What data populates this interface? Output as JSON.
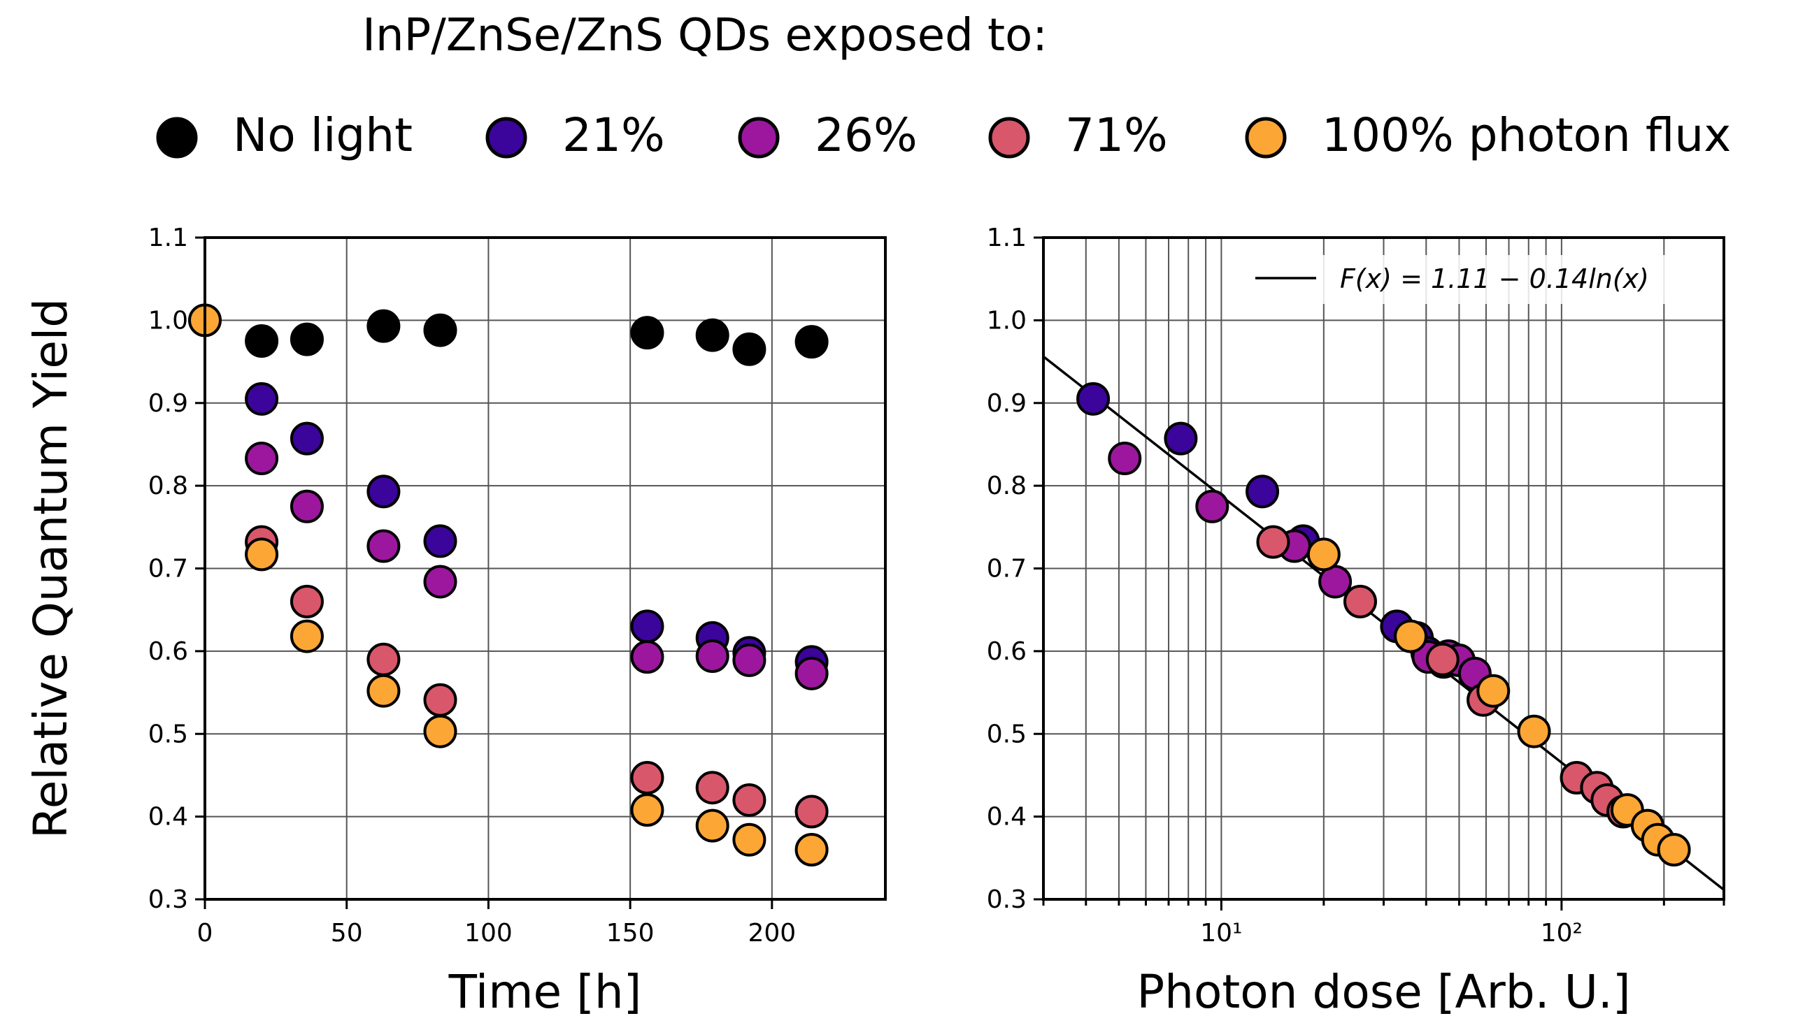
{
  "figure_title": "InP/ZnSe/ZnS QDs exposed to:",
  "legend": [
    {
      "label": "No light",
      "color": "#000000"
    },
    {
      "label": "21%",
      "color": "#3b049a"
    },
    {
      "label": "26%",
      "color": "#9c179e"
    },
    {
      "label": "71%",
      "color": "#d8576b"
    },
    {
      "label": "100% photon flux",
      "color": "#fca636"
    }
  ],
  "chart_data": [
    {
      "type": "scatter",
      "title": "",
      "xlabel": "Time [h]",
      "ylabel": "Relative Quantum Yield",
      "xlim": [
        0,
        240
      ],
      "ylim": [
        0.3,
        1.1
      ],
      "xticks": [
        0,
        50,
        100,
        150,
        200
      ],
      "xtick_labels": [
        "0",
        "50",
        "100",
        "150",
        "200"
      ],
      "yticks": [
        0.3,
        0.4,
        0.5,
        0.6,
        0.7,
        0.8,
        0.9,
        1.0,
        1.1
      ],
      "ytick_labels": [
        "0.3",
        "0.4",
        "0.5",
        "0.6",
        "0.7",
        "0.8",
        "0.9",
        "1.0",
        "1.1"
      ],
      "grid": true,
      "series": [
        {
          "name": "No light",
          "color": "#000000",
          "x": [
            20,
            36,
            63,
            83,
            156,
            179,
            192,
            214
          ],
          "y": [
            0.975,
            0.977,
            0.993,
            0.988,
            0.985,
            0.982,
            0.965,
            0.974
          ]
        },
        {
          "name": "21%",
          "color": "#3b049a",
          "x": [
            20,
            36,
            63,
            83,
            156,
            179,
            192,
            214
          ],
          "y": [
            0.905,
            0.857,
            0.793,
            0.733,
            0.63,
            0.616,
            0.598,
            0.587
          ]
        },
        {
          "name": "26%",
          "color": "#9c179e",
          "x": [
            20,
            36,
            63,
            83,
            156,
            179,
            192,
            214
          ],
          "y": [
            0.833,
            0.775,
            0.727,
            0.684,
            0.593,
            0.594,
            0.589,
            0.573
          ]
        },
        {
          "name": "71%",
          "color": "#d8576b",
          "x": [
            20,
            36,
            63,
            83,
            156,
            179,
            192,
            214
          ],
          "y": [
            0.732,
            0.66,
            0.59,
            0.541,
            0.447,
            0.435,
            0.42,
            0.406
          ]
        },
        {
          "name": "100% photon flux",
          "color": "#fca636",
          "x": [
            0,
            20,
            36,
            63,
            83,
            156,
            179,
            192,
            214
          ],
          "y": [
            1.0,
            0.717,
            0.618,
            0.552,
            0.503,
            0.408,
            0.389,
            0.372,
            0.36
          ]
        }
      ]
    },
    {
      "type": "scatter",
      "title": "",
      "xlabel": "Photon dose [Arb. U.]",
      "ylabel": "",
      "x_scale": "log",
      "xlim": [
        3,
        300
      ],
      "ylim": [
        0.3,
        1.1
      ],
      "xtick_labels": [
        "10¹",
        "10²"
      ],
      "yticks": [
        0.3,
        0.4,
        0.5,
        0.6,
        0.7,
        0.8,
        0.9,
        1.0,
        1.1
      ],
      "ytick_labels": [
        "0.3",
        "0.4",
        "0.5",
        "0.6",
        "0.7",
        "0.8",
        "0.9",
        "1.0",
        "1.1"
      ],
      "grid": true,
      "legend_position": "top-right",
      "fit": {
        "label": "F(x) = 1.11 − 0.14ln(x)",
        "a": 1.11,
        "b": 0.14,
        "color": "#000000"
      },
      "series": [
        {
          "name": "21%",
          "color": "#3b049a",
          "x": [
            4.2,
            7.6,
            13.2,
            17.4,
            32.8,
            37.6,
            40.3,
            45.0
          ],
          "y": [
            0.905,
            0.857,
            0.793,
            0.733,
            0.63,
            0.616,
            0.598,
            0.587
          ]
        },
        {
          "name": "26%",
          "color": "#9c179e",
          "x": [
            5.2,
            9.4,
            16.4,
            21.6,
            40.6,
            46.5,
            49.9,
            55.6
          ],
          "y": [
            0.833,
            0.775,
            0.727,
            0.684,
            0.593,
            0.594,
            0.589,
            0.573
          ]
        },
        {
          "name": "71%",
          "color": "#d8576b",
          "x": [
            14.2,
            25.6,
            44.7,
            58.9,
            110.8,
            127.0,
            136.3,
            151.8
          ],
          "y": [
            0.732,
            0.66,
            0.59,
            0.541,
            0.447,
            0.435,
            0.42,
            0.406
          ]
        },
        {
          "name": "100% photon flux",
          "color": "#fca636",
          "x": [
            20.0,
            36.0,
            63.0,
            83.0,
            156.0,
            179.0,
            192.0,
            214.0
          ],
          "y": [
            0.717,
            0.618,
            0.552,
            0.503,
            0.408,
            0.389,
            0.372,
            0.36
          ]
        }
      ]
    }
  ]
}
